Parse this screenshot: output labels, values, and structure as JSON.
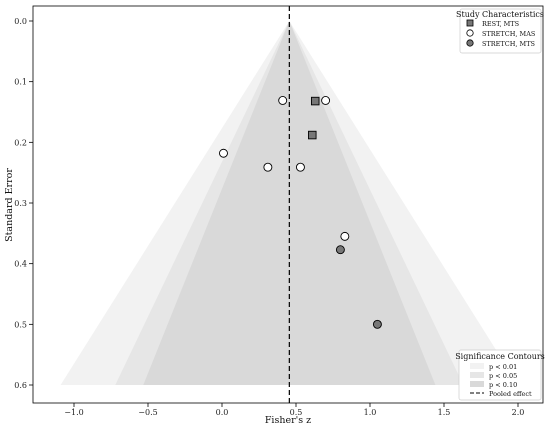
{
  "chart_data": {
    "type": "scatter",
    "title": "",
    "xlabel": "Fisher's z",
    "ylabel": "Standard Error",
    "xlim": [
      -1.25,
      2.15
    ],
    "ylim": [
      0.0,
      0.625
    ],
    "y_inverted": true,
    "x_ticks": [
      -1.0,
      -0.5,
      0.0,
      0.5,
      1.0,
      1.5,
      2.0
    ],
    "x_tick_labels": [
      "−1.0",
      "−0.5",
      "0.0",
      "0.5",
      "1.0",
      "1.5",
      "2.0"
    ],
    "y_ticks": [
      0.0,
      0.1,
      0.2,
      0.3,
      0.4,
      0.5,
      0.6
    ],
    "y_tick_labels": [
      "0.0",
      "0.1",
      "0.2",
      "0.3",
      "0.4",
      "0.5",
      "0.6"
    ],
    "pooled_effect": 0.455,
    "contours": [
      {
        "label": "p < 0.01",
        "z": 2.576,
        "color": "#f2f2f2"
      },
      {
        "label": "p < 0.05",
        "z": 1.96,
        "color": "#e6e6e6"
      },
      {
        "label": "p < 0.10",
        "z": 1.645,
        "color": "#d9d9d9"
      }
    ],
    "contour_se_max": 0.6,
    "series": [
      {
        "name": "REST, MTS",
        "marker": "square",
        "color": "#777777",
        "points": [
          {
            "x": 0.63,
            "y": 0.132
          },
          {
            "x": 0.61,
            "y": 0.188
          }
        ]
      },
      {
        "name": "STRETCH, MAS",
        "marker": "circle",
        "color": "#ffffff",
        "points": [
          {
            "x": 0.41,
            "y": 0.131
          },
          {
            "x": 0.7,
            "y": 0.131
          },
          {
            "x": 0.01,
            "y": 0.218
          },
          {
            "x": 0.31,
            "y": 0.241
          },
          {
            "x": 0.53,
            "y": 0.241
          },
          {
            "x": 0.83,
            "y": 0.355
          }
        ]
      },
      {
        "name": "STRETCH, MTS",
        "marker": "circle",
        "color": "#777777",
        "points": [
          {
            "x": 0.8,
            "y": 0.377
          },
          {
            "x": 1.05,
            "y": 0.5
          }
        ]
      }
    ],
    "legend_study": {
      "title": "Study Characteristics",
      "placement": "top-right",
      "items": [
        "REST, MTS",
        "STRETCH, MAS",
        "STRETCH, MTS"
      ]
    },
    "legend_significance": {
      "title": "Significance Contours",
      "placement": "bottom-right",
      "items": [
        "p < 0.01",
        "p < 0.05",
        "p < 0.10",
        "Pooled effect"
      ]
    }
  }
}
